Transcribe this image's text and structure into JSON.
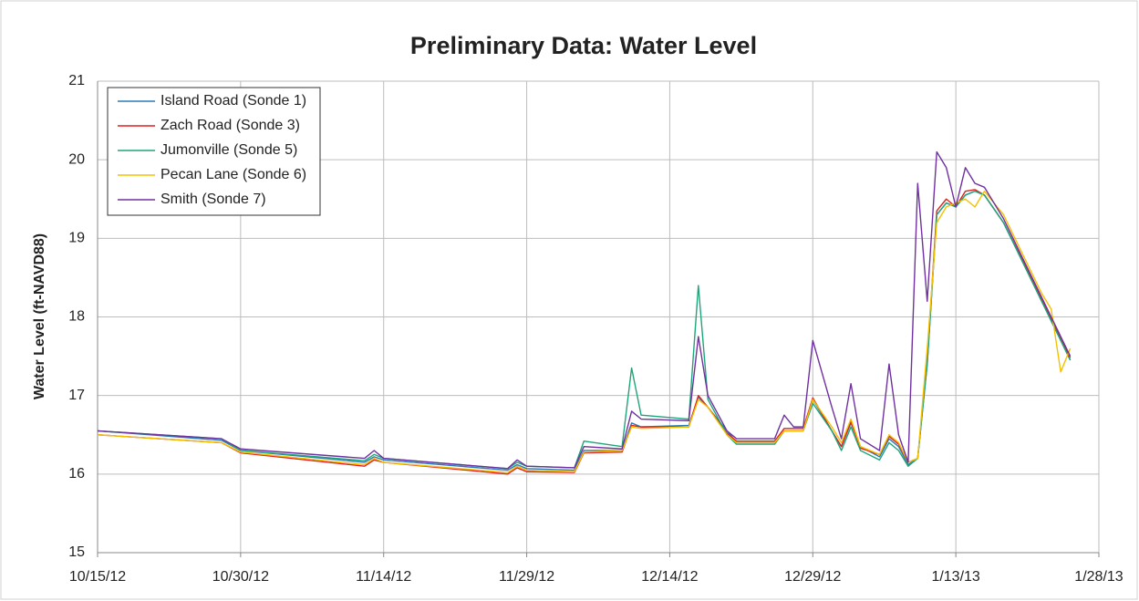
{
  "chart_data": {
    "type": "line",
    "title": "Preliminary Data: Water Level",
    "y_label": "Water Level (ft-NAVD88)",
    "x": [
      "10/15/12",
      "10/28/12",
      "10/30/12",
      "11/12/12",
      "11/13/12",
      "11/14/12",
      "11/27/12",
      "11/28/12",
      "11/29/12",
      "12/4/12",
      "12/5/12",
      "12/9/12",
      "12/10/12",
      "12/11/12",
      "12/16/12",
      "12/17/12",
      "12/18/12",
      "12/20/12",
      "12/21/12",
      "12/25/12",
      "12/26/12",
      "12/27/12",
      "12/28/12",
      "12/29/12",
      "12/31/12",
      "1/1/13",
      "1/2/13",
      "1/3/13",
      "1/5/13",
      "1/6/13",
      "1/7/13",
      "1/8/13",
      "1/9/13",
      "1/10/13",
      "1/11/13",
      "1/12/13",
      "1/13/13",
      "1/14/13",
      "1/15/13",
      "1/16/13",
      "1/18/13",
      "1/20/13",
      "1/22/13",
      "1/23/13",
      "1/24/13",
      "1/25/13"
    ],
    "series": [
      {
        "name": "Island Road (Sonde 1)",
        "color": "#2b7bb9",
        "values": [
          16.55,
          16.43,
          16.3,
          16.15,
          16.22,
          16.18,
          16.05,
          16.12,
          16.07,
          16.05,
          16.3,
          16.3,
          16.65,
          16.6,
          16.62,
          16.98,
          16.85,
          16.55,
          16.4,
          16.4,
          16.55,
          16.55,
          16.55,
          16.95,
          16.55,
          16.35,
          16.65,
          16.35,
          16.22,
          16.45,
          16.35,
          16.12,
          16.2,
          17.4,
          19.3,
          19.45,
          19.4,
          19.55,
          19.6,
          19.55,
          19.2,
          18.7,
          18.2,
          17.95,
          17.7,
          17.45
        ]
      },
      {
        "name": "Zach Road (Sonde 3)",
        "color": "#e02020",
        "values": [
          16.5,
          16.4,
          16.27,
          16.1,
          16.18,
          16.15,
          16.0,
          16.08,
          16.03,
          16.02,
          16.27,
          16.28,
          16.62,
          16.6,
          16.6,
          17.0,
          16.85,
          16.52,
          16.42,
          16.42,
          16.58,
          16.58,
          16.58,
          16.97,
          16.55,
          16.35,
          16.67,
          16.33,
          16.25,
          16.48,
          16.38,
          16.15,
          16.2,
          17.45,
          19.35,
          19.5,
          19.4,
          19.6,
          19.62,
          19.55,
          19.2,
          18.72,
          18.22,
          17.97,
          17.72,
          17.48
        ]
      },
      {
        "name": "Jumonville (Sonde 5)",
        "color": "#1fa57a",
        "values": [
          16.55,
          16.45,
          16.3,
          16.17,
          16.25,
          16.2,
          16.07,
          16.15,
          16.1,
          16.08,
          16.42,
          16.35,
          17.35,
          16.75,
          16.7,
          18.4,
          16.95,
          16.5,
          16.38,
          16.38,
          16.55,
          16.55,
          16.55,
          16.9,
          16.55,
          16.3,
          16.6,
          16.3,
          16.18,
          16.4,
          16.3,
          16.1,
          16.2,
          17.4,
          19.3,
          19.45,
          19.4,
          19.55,
          19.6,
          19.55,
          19.2,
          18.7,
          18.2,
          17.95,
          17.7,
          17.45
        ]
      },
      {
        "name": "Pecan Lane (Sonde 6)",
        "color": "#f5c000",
        "values": [
          16.5,
          16.4,
          16.28,
          16.12,
          16.2,
          16.15,
          16.02,
          16.1,
          16.05,
          16.03,
          16.28,
          16.3,
          16.6,
          16.58,
          16.6,
          16.95,
          16.85,
          16.5,
          16.4,
          16.4,
          16.55,
          16.55,
          16.55,
          16.95,
          16.6,
          16.4,
          16.7,
          16.35,
          16.25,
          16.5,
          16.4,
          16.15,
          16.2,
          17.6,
          19.2,
          19.4,
          19.45,
          19.5,
          19.4,
          19.6,
          19.3,
          18.8,
          18.3,
          18.1,
          17.3,
          17.6
        ]
      },
      {
        "name": "Smith (Sonde 7)",
        "color": "#7030a0",
        "values": [
          16.55,
          16.45,
          16.32,
          16.2,
          16.3,
          16.2,
          16.07,
          16.18,
          16.1,
          16.08,
          16.35,
          16.32,
          16.8,
          16.7,
          16.68,
          17.75,
          17.0,
          16.55,
          16.45,
          16.45,
          16.75,
          16.6,
          16.6,
          17.7,
          16.85,
          16.45,
          17.15,
          16.45,
          16.3,
          17.4,
          16.5,
          16.15,
          19.7,
          18.2,
          20.1,
          19.9,
          19.4,
          19.9,
          19.7,
          19.65,
          19.25,
          18.75,
          18.25,
          18.0,
          17.75,
          17.5
        ]
      }
    ],
    "xlim": [
      "10/15/12",
      "1/28/13"
    ],
    "xticks": [
      "10/15/12",
      "10/30/12",
      "11/14/12",
      "11/29/12",
      "12/14/12",
      "12/29/12",
      "1/13/13",
      "1/28/13"
    ],
    "ylim": [
      15,
      21
    ],
    "yticks": [
      15,
      16,
      17,
      18,
      19,
      20,
      21
    ],
    "grid": true,
    "legend": "upper left"
  }
}
